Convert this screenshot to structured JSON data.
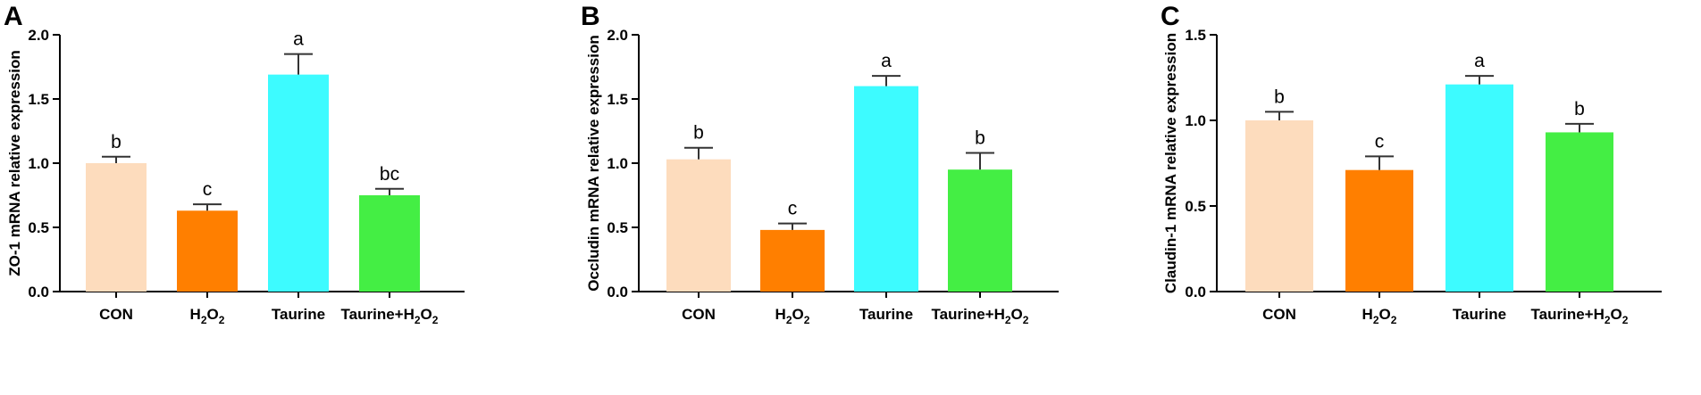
{
  "colors": {
    "CON": "#fddcbd",
    "H2O2": "#ff7f00",
    "Taurine": "#3dfbff",
    "Taurine+H2O2": "#44ee44"
  },
  "chart_data": [
    {
      "panel": "A",
      "type": "bar",
      "categories": [
        "CON",
        "H2O2",
        "Taurine",
        "Taurine+H2O2"
      ],
      "category_labels": [
        {
          "text": "CON"
        },
        {
          "text": "H",
          "sub1": "2",
          "mid": "O",
          "sub2": "2"
        },
        {
          "text": "Taurine"
        },
        {
          "text": "Taurine+H",
          "sub1": "2",
          "mid": "O",
          "sub2": "2"
        }
      ],
      "values": [
        1.0,
        0.63,
        1.69,
        0.75
      ],
      "errors": [
        0.05,
        0.05,
        0.16,
        0.05
      ],
      "significance": [
        "b",
        "c",
        "a",
        "bc"
      ],
      "ylabel": "ZO-1 mRNA relative expression",
      "ylim": [
        0,
        2.0
      ],
      "yticks": [
        "0.0",
        "0.5",
        "1.0",
        "1.5",
        "2.0"
      ],
      "ytick_values": [
        0,
        0.5,
        1.0,
        1.5,
        2.0
      ]
    },
    {
      "panel": "B",
      "type": "bar",
      "categories": [
        "CON",
        "H2O2",
        "Taurine",
        "Taurine+H2O2"
      ],
      "category_labels": [
        {
          "text": "CON"
        },
        {
          "text": "H",
          "sub1": "2",
          "mid": "O",
          "sub2": "2"
        },
        {
          "text": "Taurine"
        },
        {
          "text": "Taurine+H",
          "sub1": "2",
          "mid": "O",
          "sub2": "2"
        }
      ],
      "values": [
        1.03,
        0.48,
        1.6,
        0.95
      ],
      "errors": [
        0.09,
        0.05,
        0.08,
        0.13
      ],
      "significance": [
        "b",
        "c",
        "a",
        "b"
      ],
      "ylabel": "Occludin mRNA relative expression",
      "ylim": [
        0,
        2.0
      ],
      "yticks": [
        "0.0",
        "0.5",
        "1.0",
        "1.5",
        "2.0"
      ],
      "ytick_values": [
        0,
        0.5,
        1.0,
        1.5,
        2.0
      ]
    },
    {
      "panel": "C",
      "type": "bar",
      "categories": [
        "CON",
        "H2O2",
        "Taurine",
        "Taurine+H2O2"
      ],
      "category_labels": [
        {
          "text": "CON"
        },
        {
          "text": "H",
          "sub1": "2",
          "mid": "O",
          "sub2": "2"
        },
        {
          "text": "Taurine"
        },
        {
          "text": "Taurine+H",
          "sub1": "2",
          "mid": "O",
          "sub2": "2"
        }
      ],
      "values": [
        1.0,
        0.71,
        1.21,
        0.93
      ],
      "errors": [
        0.05,
        0.08,
        0.05,
        0.05
      ],
      "significance": [
        "b",
        "c",
        "a",
        "b"
      ],
      "ylabel": "Claudin-1 mRNA relative expression",
      "ylim": [
        0,
        1.5
      ],
      "yticks": [
        "0.0",
        "0.5",
        "1.0",
        "1.5"
      ],
      "ytick_values": [
        0,
        0.5,
        1.0,
        1.5
      ]
    }
  ]
}
